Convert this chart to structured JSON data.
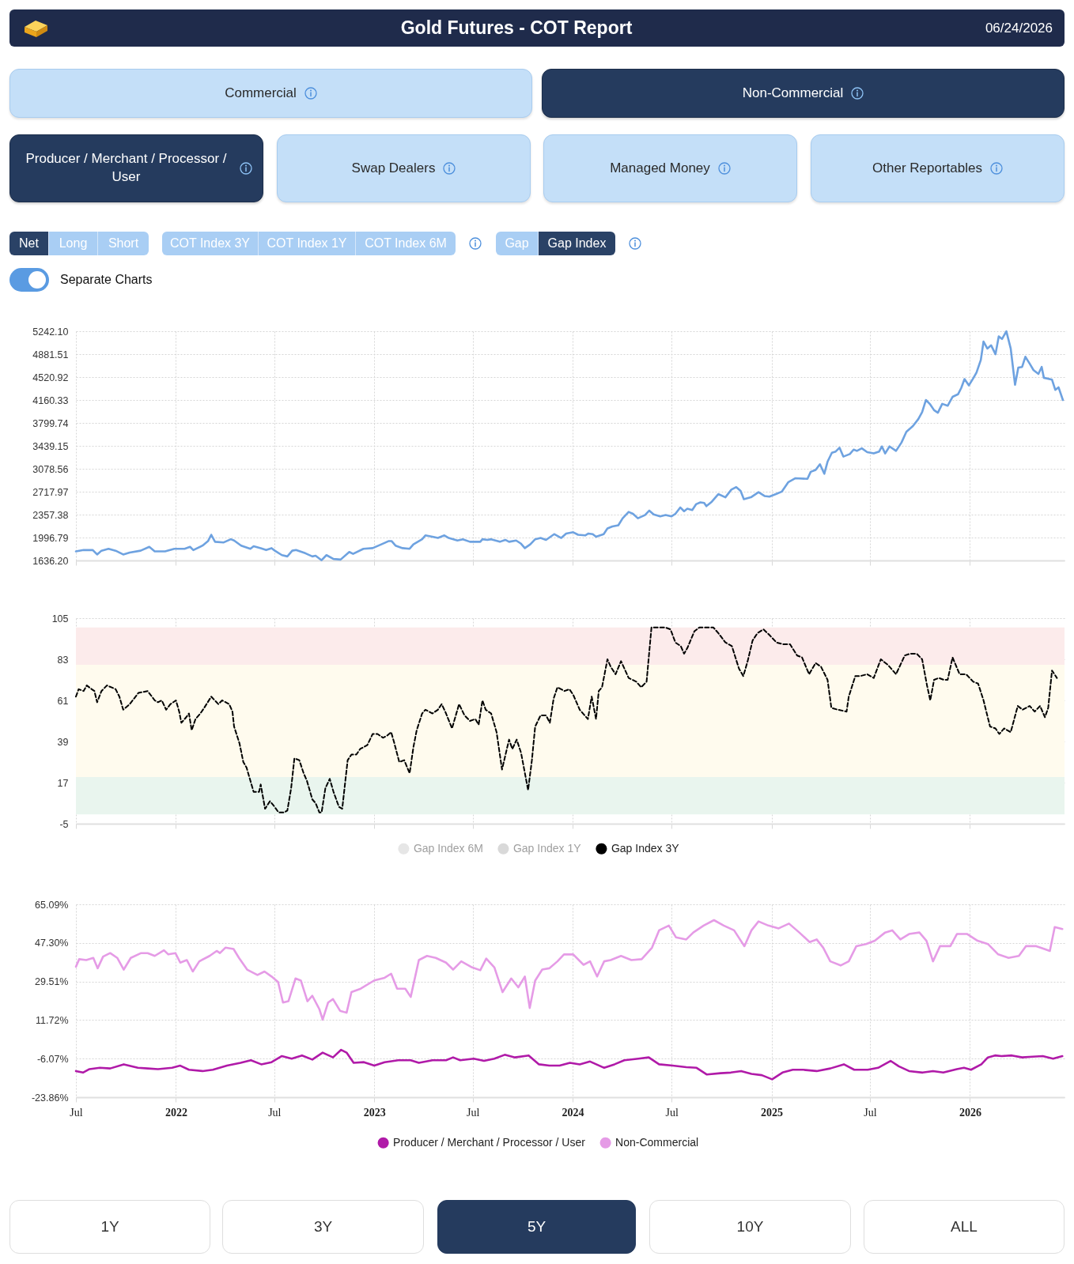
{
  "chart_data": [
    {
      "type": "other",
      "title": "Gold Futures - COT Report",
      "subtitle": "06/24/2026",
      "annotations": [
        "Commercial",
        "Non-Commercial",
        "Producer / Merchant / Processor / User",
        "Swap Dealers",
        "Managed Money",
        "Other Reportables",
        "Net",
        "Long",
        "Short",
        "COT Index 3Y",
        "COT Index 1Y",
        "COT Index 6M",
        "Gap",
        "Gap Index",
        "Separate Charts"
      ]
    },
    {
      "type": "line",
      "color": "#6ea2e0",
      "tick_labels": "y",
      "grid": true,
      "xlim": [
        "2021-07-01",
        "2026-06-24"
      ],
      "xticks": [
        {
          "value": "2021-07-01",
          "label": null
        },
        {
          "value": "2022-01-01",
          "label": null
        },
        {
          "value": "2022-07-01",
          "label": null
        },
        {
          "value": "2023-01-01",
          "label": null
        },
        {
          "value": "2023-07-01",
          "label": null
        },
        {
          "value": "2024-01-01",
          "label": null
        },
        {
          "value": "2024-07-01",
          "label": null
        },
        {
          "value": "2025-01-01",
          "label": null
        },
        {
          "value": "2025-07-01",
          "label": null
        },
        {
          "value": "2026-01-01",
          "label": null
        }
      ],
      "ylim": [
        1636.2,
        5242.1
      ],
      "yticks": [
        {
          "value": 1636.2,
          "label": "1636.20"
        },
        1996.79,
        2357.38,
        2717.97,
        3078.56,
        3439.15,
        3799.74,
        4160.33,
        4520.92,
        4881.51,
        {
          "value": 5242.1,
          "label": "5242.10"
        }
      ],
      "x": [
        "2021-07-01",
        "2021-07-15",
        "2021-08-01",
        "2021-08-09",
        "2021-08-17",
        "2021-08-30",
        "2021-09-12",
        "2021-09-26",
        "2021-10-08",
        "2021-10-28",
        "2021-11-13",
        "2021-11-23",
        "2021-12-12",
        "2021-12-29",
        "2022-01-17",
        "2022-01-27",
        "2022-02-02",
        "2022-02-19",
        "2022-03-01",
        "2022-03-07",
        "2022-03-14",
        "2022-03-30",
        "2022-04-12",
        "2022-04-18",
        "2022-05-01",
        "2022-05-18",
        "2022-05-24",
        "2022-06-06",
        "2022-06-16",
        "2022-06-26",
        "2022-07-02",
        "2022-07-15",
        "2022-07-25",
        "2022-08-03",
        "2022-08-10",
        "2022-08-27",
        "2022-09-09",
        "2022-09-15",
        "2022-09-26",
        "2022-10-05",
        "2022-10-18",
        "2022-10-31",
        "2022-11-16",
        "2022-11-23",
        "2022-12-12",
        "2022-12-29",
        "2023-01-14",
        "2023-01-27",
        "2023-02-02",
        "2023-02-09",
        "2023-02-22",
        "2023-03-07",
        "2023-03-14",
        "2023-03-30",
        "2023-04-05",
        "2023-04-18",
        "2023-04-28",
        "2023-05-10",
        "2023-05-18",
        "2023-06-03",
        "2023-06-13",
        "2023-06-26",
        "2023-07-15",
        "2023-07-19",
        "2023-07-28",
        "2023-08-04",
        "2023-08-20",
        "2023-08-30",
        "2023-09-06",
        "2023-09-19",
        "2023-09-28",
        "2023-10-05",
        "2023-10-15",
        "2023-10-24",
        "2023-11-03",
        "2023-11-13",
        "2023-11-28",
        "2023-12-11",
        "2023-12-20",
        "2024-01-02",
        "2024-01-11",
        "2024-01-24",
        "2024-01-30",
        "2024-02-07",
        "2024-02-13",
        "2024-02-27",
        "2024-03-05",
        "2024-03-14",
        "2024-03-25",
        "2024-04-02",
        "2024-04-13",
        "2024-04-21",
        "2024-04-30",
        "2024-05-13",
        "2024-05-21",
        "2024-05-29",
        "2024-06-10",
        "2024-06-20",
        "2024-07-01",
        "2024-07-08",
        "2024-07-17",
        "2024-07-24",
        "2024-07-30",
        "2024-08-08",
        "2024-08-15",
        "2024-08-23",
        "2024-08-30",
        "2024-09-03",
        "2024-09-13",
        "2024-09-25",
        "2024-10-08",
        "2024-10-19",
        "2024-10-28",
        "2024-11-05",
        "2024-11-11",
        "2024-11-24",
        "2024-12-08",
        "2024-12-19",
        "2024-12-28",
        "2025-01-09",
        "2025-01-20",
        "2025-02-01",
        "2025-02-14",
        "2025-03-08",
        "2025-03-14",
        "2025-03-23",
        "2025-03-31",
        "2025-04-08",
        "2025-04-14",
        "2025-04-22",
        "2025-04-29",
        "2025-05-06",
        "2025-05-13",
        "2025-05-25",
        "2025-06-01",
        "2025-06-07",
        "2025-06-16",
        "2025-06-26",
        "2025-07-08",
        "2025-07-18",
        "2025-07-23",
        "2025-07-29",
        "2025-08-06",
        "2025-08-18",
        "2025-08-28",
        "2025-09-06",
        "2025-09-18",
        "2025-09-28",
        "2025-10-05",
        "2025-10-12",
        "2025-10-20",
        "2025-10-27",
        "2025-11-03",
        "2025-11-11",
        "2025-11-21",
        "2025-11-30",
        "2025-12-10",
        "2025-12-16",
        "2025-12-22",
        "2025-12-30",
        "2026-01-07",
        "2026-01-13",
        "2026-01-21",
        "2026-01-26",
        "2026-02-02",
        "2026-02-09",
        "2026-02-17",
        "2026-02-23",
        "2026-03-01",
        "2026-03-09",
        "2026-03-17",
        "2026-03-25",
        "2026-03-31",
        "2026-04-07",
        "2026-04-13",
        "2026-04-21",
        "2026-04-28",
        "2026-05-07",
        "2026-05-13",
        "2026-05-17",
        "2026-06-01",
        "2026-06-07",
        "2026-06-13",
        "2026-06-21"
      ],
      "values": [
        1780,
        1800,
        1800,
        1730,
        1790,
        1820,
        1790,
        1730,
        1760,
        1790,
        1850,
        1780,
        1780,
        1820,
        1820,
        1850,
        1800,
        1870,
        1940,
        2040,
        1930,
        1920,
        1970,
        1950,
        1870,
        1820,
        1860,
        1830,
        1800,
        1830,
        1790,
        1720,
        1700,
        1790,
        1800,
        1750,
        1700,
        1710,
        1640,
        1720,
        1660,
        1650,
        1770,
        1740,
        1820,
        1830,
        1890,
        1940,
        1940,
        1870,
        1830,
        1820,
        1890,
        1970,
        2030,
        2010,
        1990,
        2030,
        1990,
        1950,
        1970,
        1930,
        1930,
        1970,
        1960,
        1970,
        1930,
        1960,
        1930,
        1950,
        1900,
        1830,
        1890,
        1970,
        1990,
        1960,
        2050,
        1990,
        2060,
        2080,
        2040,
        2030,
        2060,
        2050,
        2010,
        2050,
        2140,
        2170,
        2190,
        2300,
        2400,
        2370,
        2300,
        2350,
        2420,
        2360,
        2330,
        2350,
        2330,
        2370,
        2470,
        2410,
        2450,
        2430,
        2520,
        2550,
        2540,
        2490,
        2560,
        2680,
        2630,
        2750,
        2790,
        2730,
        2600,
        2630,
        2710,
        2650,
        2640,
        2680,
        2720,
        2870,
        2930,
        2920,
        3030,
        3060,
        3150,
        3000,
        3190,
        3330,
        3350,
        3410,
        3270,
        3310,
        3380,
        3360,
        3400,
        3340,
        3320,
        3350,
        3430,
        3320,
        3430,
        3360,
        3490,
        3660,
        3750,
        3860,
        3970,
        4160,
        4090,
        4000,
        3960,
        4100,
        4070,
        4210,
        4250,
        4350,
        4490,
        4390,
        4500,
        4590,
        4790,
        5080,
        4970,
        5020,
        4880,
        5160,
        5120,
        5240,
        4970,
        4400,
        4670,
        4680,
        4840,
        4730,
        4630,
        4570,
        4680,
        4510,
        4480,
        4320,
        4360,
        4160
      ]
    },
    {
      "type": "line",
      "tick_labels": "y",
      "grid": true,
      "legend": "bottom",
      "line_style": "dashed",
      "xlim": [
        "2021-07-01",
        "2026-06-24"
      ],
      "xticks": [
        {
          "value": "2021-07-01",
          "label": null
        },
        {
          "value": "2022-01-01",
          "label": null
        },
        {
          "value": "2022-07-01",
          "label": null
        },
        {
          "value": "2023-01-01",
          "label": null
        },
        {
          "value": "2023-07-01",
          "label": null
        },
        {
          "value": "2024-01-01",
          "label": null
        },
        {
          "value": "2024-07-01",
          "label": null
        },
        {
          "value": "2025-01-01",
          "label": null
        },
        {
          "value": "2025-07-01",
          "label": null
        },
        {
          "value": "2026-01-01",
          "label": null
        }
      ],
      "ylim": [
        -5,
        105
      ],
      "yticks": [
        -5,
        17,
        39,
        61,
        83,
        105
      ],
      "bands": [
        {
          "axis": "y",
          "from": 0,
          "to": 20,
          "color": "#e9f5ee"
        },
        {
          "axis": "y",
          "from": 20,
          "to": 80,
          "color": "#fffbee"
        },
        {
          "axis": "y",
          "from": 80,
          "to": 100,
          "color": "#fcebeb"
        }
      ],
      "series": [
        {
          "name": "Gap Index 6M",
          "color": "#e6e6e6"
        },
        {
          "name": "Gap Index 1Y",
          "color": "#d9d9d9"
        },
        {
          "name": "Gap Index 3Y",
          "color": "#000000",
          "x": [
            "2021-07-01",
            "2021-07-06",
            "2021-07-15",
            "2021-07-21",
            "2021-07-30",
            "2021-08-04",
            "2021-08-09",
            "2021-08-17",
            "2021-08-27",
            "2021-09-04",
            "2021-09-12",
            "2021-09-19",
            "2021-09-26",
            "2021-10-08",
            "2021-10-24",
            "2021-11-10",
            "2021-11-23",
            "2021-11-29",
            "2021-12-06",
            "2021-12-14",
            "2021-12-22",
            "2022-01-01",
            "2022-01-07",
            "2022-01-11",
            "2022-01-20",
            "2022-01-25",
            "2022-01-30",
            "2022-02-06",
            "2022-02-15",
            "2022-02-22",
            "2022-03-07",
            "2022-03-20",
            "2022-03-27",
            "2022-04-09",
            "2022-04-15",
            "2022-04-18",
            "2022-04-28",
            "2022-05-05",
            "2022-05-11",
            "2022-05-24",
            "2022-06-03",
            "2022-06-06",
            "2022-06-14",
            "2022-06-23",
            "2022-06-29",
            "2022-07-09",
            "2022-07-19",
            "2022-07-25",
            "2022-08-01",
            "2022-08-07",
            "2022-08-16",
            "2022-08-24",
            "2022-08-30",
            "2022-09-09",
            "2022-09-15",
            "2022-09-22",
            "2022-09-26",
            "2022-10-03",
            "2022-10-11",
            "2022-10-18",
            "2022-10-28",
            "2022-11-03",
            "2022-11-13",
            "2022-11-20",
            "2022-11-29",
            "2022-12-06",
            "2022-12-19",
            "2022-12-29",
            "2023-01-07",
            "2023-01-17",
            "2023-01-24",
            "2023-02-01",
            "2023-02-06",
            "2023-02-16",
            "2023-02-25",
            "2023-03-07",
            "2023-03-14",
            "2023-03-20",
            "2023-03-30",
            "2023-04-05",
            "2023-04-18",
            "2023-04-28",
            "2023-05-05",
            "2023-05-13",
            "2023-05-24",
            "2023-05-31",
            "2023-06-06",
            "2023-06-16",
            "2023-06-26",
            "2023-07-06",
            "2023-07-12",
            "2023-07-19",
            "2023-07-25",
            "2023-08-04",
            "2023-08-14",
            "2023-08-24",
            "2023-09-06",
            "2023-09-12",
            "2023-09-20",
            "2023-09-28",
            "2023-10-11",
            "2023-10-18",
            "2023-10-24",
            "2023-11-03",
            "2023-11-13",
            "2023-11-20",
            "2023-11-27",
            "2023-12-04",
            "2023-12-17",
            "2023-12-26",
            "2024-01-02",
            "2024-01-14",
            "2024-01-29",
            "2024-02-05",
            "2024-02-13",
            "2024-02-18",
            "2024-02-24",
            "2024-03-05",
            "2024-03-11",
            "2024-03-20",
            "2024-03-30",
            "2024-04-13",
            "2024-04-27",
            "2024-05-06",
            "2024-05-16",
            "2024-05-25",
            "2024-06-01",
            "2024-06-20",
            "2024-06-29",
            "2024-07-08",
            "2024-07-18",
            "2024-07-24",
            "2024-07-30",
            "2024-08-12",
            "2024-08-21",
            "2024-09-03",
            "2024-09-16",
            "2024-09-25",
            "2024-10-08",
            "2024-10-20",
            "2024-11-02",
            "2024-11-10",
            "2024-11-18",
            "2024-11-27",
            "2024-12-06",
            "2024-12-17",
            "2024-12-28",
            "2025-01-10",
            "2025-01-23",
            "2025-02-04",
            "2025-02-17",
            "2025-02-26",
            "2025-03-11",
            "2025-03-23",
            "2025-04-02",
            "2025-04-14",
            "2025-04-21",
            "2025-05-03",
            "2025-05-19",
            "2025-05-23",
            "2025-06-04",
            "2025-06-13",
            "2025-06-26",
            "2025-07-08",
            "2025-07-21",
            "2025-08-03",
            "2025-08-18",
            "2025-09-03",
            "2025-09-13",
            "2025-09-25",
            "2025-10-05",
            "2025-10-14",
            "2025-10-20",
            "2025-10-27",
            "2025-11-05",
            "2025-11-14",
            "2025-11-21",
            "2025-11-30",
            "2025-12-13",
            "2025-12-25",
            "2026-01-07",
            "2026-01-16",
            "2026-01-26",
            "2026-02-07",
            "2026-02-17",
            "2026-02-24",
            "2026-03-05",
            "2026-03-17",
            "2026-03-30",
            "2026-04-08",
            "2026-04-21",
            "2026-04-30",
            "2026-05-10",
            "2026-05-19",
            "2026-05-25",
            "2026-06-01",
            "2026-06-10"
          ],
          "values": [
            63,
            67,
            66,
            69,
            67,
            66,
            60,
            66,
            69,
            68,
            67,
            63,
            56,
            59,
            65,
            66,
            61,
            60,
            61,
            56,
            59,
            61,
            55,
            49,
            52,
            54,
            45,
            51,
            54,
            57,
            63,
            59,
            61,
            59,
            55,
            47,
            38,
            28,
            25,
            12,
            12,
            16,
            3,
            7,
            5,
            1,
            1,
            2,
            14,
            30,
            29,
            22,
            18,
            8,
            6,
            1,
            1,
            14,
            19,
            12,
            4,
            3,
            29,
            32,
            32,
            35,
            37,
            43,
            43,
            41,
            42,
            44,
            39,
            28,
            29,
            22,
            36,
            45,
            54,
            56,
            54,
            56,
            59,
            54,
            46,
            53,
            59,
            53,
            50,
            51,
            48,
            61,
            56,
            54,
            44,
            24,
            40,
            35,
            40,
            33,
            13,
            29,
            47,
            53,
            53,
            49,
            62,
            68,
            66,
            67,
            64,
            56,
            51,
            63,
            51,
            66,
            68,
            83,
            79,
            75,
            82,
            73,
            71,
            68,
            71,
            100,
            100,
            100,
            99,
            92,
            90,
            86,
            89,
            98,
            100,
            100,
            100,
            97,
            92,
            90,
            78,
            74,
            82,
            93,
            97,
            99,
            96,
            92,
            91,
            91,
            85,
            84,
            75,
            81,
            79,
            72,
            57,
            56,
            55,
            63,
            74,
            74,
            75,
            73,
            83,
            80,
            75,
            85,
            86,
            86,
            83,
            69,
            61,
            72,
            73,
            72,
            72,
            84,
            75,
            75,
            71,
            70,
            61,
            47,
            46,
            43,
            46,
            44,
            58,
            56,
            58,
            55,
            58,
            52,
            57,
            77,
            73
          ]
        }
      ]
    },
    {
      "type": "line",
      "grid": true,
      "legend": "bottom",
      "xlim": [
        "2021-07-01",
        "2026-06-24"
      ],
      "xticks": [
        {
          "value": "2021-07-01",
          "label": "Jul"
        },
        {
          "value": "2022-01-01",
          "label": "2022"
        },
        {
          "value": "2022-07-01",
          "label": "Jul"
        },
        {
          "value": "2023-01-01",
          "label": "2023"
        },
        {
          "value": "2023-07-01",
          "label": "Jul"
        },
        {
          "value": "2024-01-01",
          "label": "2024"
        },
        {
          "value": "2024-07-01",
          "label": "Jul"
        },
        {
          "value": "2025-01-01",
          "label": "2025"
        },
        {
          "value": "2025-07-01",
          "label": "Jul"
        },
        {
          "value": "2026-01-01",
          "label": "2026"
        }
      ],
      "ylim": [
        -23.86,
        65.09
      ],
      "yticks": [
        {
          "value": -23.86,
          "label": "-23.86%"
        },
        {
          "value": -6.07,
          "label": "-6.07%"
        },
        {
          "value": 11.72,
          "label": "11.72%"
        },
        {
          "value": 29.51,
          "label": "29.51%"
        },
        {
          "value": 47.3,
          "label": "47.30%"
        },
        {
          "value": 65.09,
          "label": "65.09%"
        }
      ],
      "series": [
        {
          "name": "Producer / Merchant / Processor / User",
          "color": "#b01aa8",
          "x": [
            "2021-07-01",
            "2021-07-14",
            "2021-07-26",
            "2021-08-14",
            "2021-09-02",
            "2021-09-27",
            "2021-10-23",
            "2021-11-10",
            "2021-11-29",
            "2021-12-25",
            "2022-01-09",
            "2022-01-25",
            "2022-02-19",
            "2022-03-10",
            "2022-04-05",
            "2022-04-30",
            "2022-05-19",
            "2022-06-07",
            "2022-06-26",
            "2022-07-15",
            "2022-08-02",
            "2022-08-21",
            "2022-09-09",
            "2022-09-28",
            "2022-10-17",
            "2022-11-01",
            "2022-11-11",
            "2022-11-24",
            "2022-12-13",
            "2023-01-01",
            "2023-01-20",
            "2023-02-14",
            "2023-03-09",
            "2023-03-24",
            "2023-04-18",
            "2023-05-13",
            "2023-05-26",
            "2023-06-08",
            "2023-07-03",
            "2023-07-22",
            "2023-08-10",
            "2023-08-29",
            "2023-09-17",
            "2023-10-12",
            "2023-10-31",
            "2023-11-19",
            "2023-12-08",
            "2023-12-27",
            "2024-01-14",
            "2024-02-02",
            "2024-02-28",
            "2024-03-18",
            "2024-04-05",
            "2024-05-01",
            "2024-05-20",
            "2024-06-08",
            "2024-07-03",
            "2024-07-28",
            "2024-08-16",
            "2024-09-04",
            "2024-09-29",
            "2024-10-18",
            "2024-11-06",
            "2024-11-25",
            "2024-12-14",
            "2025-01-02",
            "2025-01-21",
            "2025-02-09",
            "2025-02-28",
            "2025-03-25",
            "2025-04-19",
            "2025-05-14",
            "2025-06-02",
            "2025-06-27",
            "2025-07-16",
            "2025-08-08",
            "2025-08-23",
            "2025-09-11",
            "2025-10-06",
            "2025-10-25",
            "2025-11-13",
            "2025-12-08",
            "2025-12-21",
            "2026-01-03",
            "2026-01-22",
            "2026-02-03",
            "2026-02-16",
            "2026-02-28",
            "2026-03-19",
            "2026-04-07",
            "2026-04-26",
            "2026-05-15",
            "2026-06-03",
            "2026-06-20"
          ],
          "values": [
            -11.8,
            -12.5,
            -10.9,
            -10.3,
            -10.6,
            -8.7,
            -10.3,
            -10.6,
            -10.9,
            -10.3,
            -9.3,
            -11.2,
            -11.8,
            -11.2,
            -9.3,
            -8.0,
            -6.8,
            -8.7,
            -7.7,
            -4.9,
            -6.1,
            -4.6,
            -6.5,
            -3.3,
            -5.5,
            -2.0,
            -3.3,
            -8.0,
            -7.7,
            -9.3,
            -7.7,
            -6.8,
            -6.8,
            -8.0,
            -6.8,
            -6.8,
            -5.5,
            -6.8,
            -6.1,
            -7.1,
            -6.1,
            -4.3,
            -5.5,
            -4.6,
            -8.7,
            -9.3,
            -9.3,
            -8.0,
            -8.7,
            -7.4,
            -10.3,
            -8.7,
            -6.8,
            -6.1,
            -5.5,
            -8.7,
            -9.3,
            -10.0,
            -10.3,
            -13.4,
            -12.8,
            -12.5,
            -11.8,
            -13.1,
            -13.7,
            -15.6,
            -12.5,
            -11.2,
            -11.2,
            -11.8,
            -10.6,
            -8.7,
            -11.2,
            -11.2,
            -10.3,
            -7.1,
            -9.6,
            -11.8,
            -12.5,
            -11.8,
            -12.5,
            -10.9,
            -10.3,
            -11.2,
            -8.7,
            -5.5,
            -4.6,
            -4.9,
            -4.6,
            -5.5,
            -5.2,
            -4.9,
            -6.1,
            -4.9
          ]
        },
        {
          "name": "Non-Commercial",
          "color": "#e59be6",
          "x": [
            "2021-07-01",
            "2021-07-07",
            "2021-07-20",
            "2021-08-02",
            "2021-08-10",
            "2021-08-20",
            "2021-09-02",
            "2021-09-15",
            "2021-09-27",
            "2021-10-10",
            "2021-10-29",
            "2021-11-10",
            "2021-11-23",
            "2021-12-10",
            "2021-12-18",
            "2021-12-31",
            "2022-01-09",
            "2022-01-21",
            "2022-02-01",
            "2022-02-13",
            "2022-03-04",
            "2022-03-17",
            "2022-03-23",
            "2022-04-02",
            "2022-04-17",
            "2022-04-27",
            "2022-05-12",
            "2022-05-31",
            "2022-06-13",
            "2022-06-26",
            "2022-07-08",
            "2022-07-17",
            "2022-07-27",
            "2022-08-09",
            "2022-08-19",
            "2022-08-31",
            "2022-09-09",
            "2022-09-22",
            "2022-09-28",
            "2022-10-08",
            "2022-10-17",
            "2022-10-30",
            "2022-11-11",
            "2022-11-20",
            "2022-12-07",
            "2023-01-01",
            "2023-01-20",
            "2023-02-01",
            "2023-02-12",
            "2023-02-27",
            "2023-03-09",
            "2023-03-24",
            "2023-04-08",
            "2023-04-24",
            "2023-05-13",
            "2023-05-26",
            "2023-06-10",
            "2023-06-30",
            "2023-07-15",
            "2023-07-26",
            "2023-08-10",
            "2023-08-25",
            "2023-09-10",
            "2023-09-23",
            "2023-10-05",
            "2023-10-14",
            "2023-10-24",
            "2023-11-06",
            "2023-11-19",
            "2023-12-04",
            "2023-12-16",
            "2024-01-02",
            "2024-01-21",
            "2024-02-02",
            "2024-02-15",
            "2024-02-28",
            "2024-03-11",
            "2024-03-30",
            "2024-04-18",
            "2024-05-07",
            "2024-05-26",
            "2024-06-08",
            "2024-06-26",
            "2024-07-09",
            "2024-07-28",
            "2024-08-10",
            "2024-08-29",
            "2024-09-17",
            "2024-10-05",
            "2024-10-24",
            "2024-11-12",
            "2024-11-25",
            "2024-12-08",
            "2024-12-26",
            "2025-01-14",
            "2025-02-02",
            "2025-02-21",
            "2025-03-12",
            "2025-03-25",
            "2025-04-06",
            "2025-04-19",
            "2025-05-08",
            "2025-05-23",
            "2025-06-06",
            "2025-06-24",
            "2025-07-10",
            "2025-07-29",
            "2025-08-11",
            "2025-08-26",
            "2025-09-11",
            "2025-09-30",
            "2025-10-13",
            "2025-10-25",
            "2025-11-07",
            "2025-11-26",
            "2025-12-08",
            "2025-12-27",
            "2026-01-15",
            "2026-02-03",
            "2026-02-22",
            "2026-03-13",
            "2026-04-01",
            "2026-04-14",
            "2026-05-03",
            "2026-05-18",
            "2026-05-28",
            "2026-06-06",
            "2026-06-20"
          ],
          "values": [
            36.3,
            39.8,
            39.4,
            40.4,
            35.6,
            41.0,
            42.6,
            40.4,
            35.0,
            40.4,
            42.6,
            42.6,
            41.3,
            43.9,
            42.0,
            42.6,
            38.2,
            39.4,
            34.1,
            38.8,
            41.3,
            43.6,
            42.6,
            45.1,
            44.5,
            40.4,
            35.0,
            32.5,
            34.1,
            31.8,
            29.3,
            19.8,
            20.4,
            30.9,
            29.9,
            20.4,
            22.9,
            16.7,
            11.9,
            19.8,
            21.4,
            16.0,
            15.1,
            24.6,
            26.2,
            30.0,
            31.2,
            33.1,
            26.2,
            26.2,
            22.4,
            39.4,
            41.3,
            40.4,
            38.2,
            35.0,
            38.8,
            36.0,
            34.7,
            40.1,
            36.0,
            24.6,
            30.9,
            26.8,
            31.8,
            17.3,
            29.9,
            35.0,
            35.6,
            38.8,
            42.0,
            42.0,
            37.2,
            38.8,
            31.8,
            38.8,
            39.4,
            41.3,
            39.4,
            39.8,
            45.1,
            53.1,
            55.3,
            49.9,
            48.9,
            52.1,
            55.3,
            57.8,
            55.3,
            53.1,
            45.8,
            53.1,
            57.2,
            55.3,
            54.0,
            56.2,
            52.1,
            47.7,
            48.9,
            45.1,
            38.8,
            36.9,
            38.8,
            45.8,
            46.8,
            48.3,
            52.1,
            53.1,
            48.9,
            51.4,
            52.1,
            48.3,
            38.8,
            45.8,
            45.8,
            51.4,
            51.4,
            48.3,
            46.8,
            42.0,
            40.4,
            41.3,
            45.8,
            45.8,
            44.5,
            43.6,
            54.6,
            53.7
          ]
        }
      ]
    },
    {
      "type": "other",
      "annotations": [
        "1Y",
        "3Y",
        "5Y",
        "10Y",
        "ALL"
      ]
    }
  ]
}
